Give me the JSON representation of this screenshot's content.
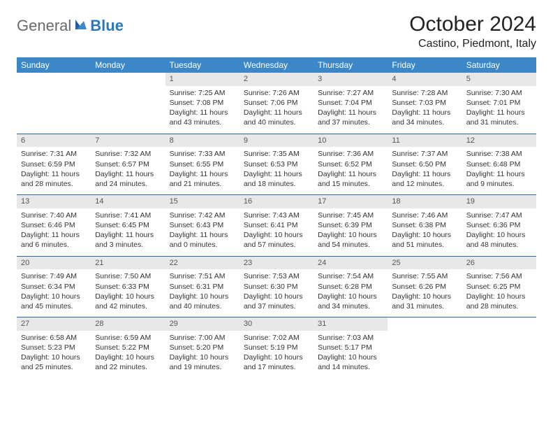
{
  "logo": {
    "text1": "General",
    "text2": "Blue"
  },
  "title": "October 2024",
  "location": "Castino, Piedmont, Italy",
  "colors": {
    "header_bg": "#3b87c8",
    "header_text": "#ffffff",
    "row_border": "#2a6aa5",
    "daynum_bg": "#e8e8e8",
    "daynum_text": "#555555",
    "logo_gray": "#6a6a6a",
    "logo_blue": "#2a78c0"
  },
  "dayHeaders": [
    "Sunday",
    "Monday",
    "Tuesday",
    "Wednesday",
    "Thursday",
    "Friday",
    "Saturday"
  ],
  "weeks": [
    [
      {
        "empty": true
      },
      {
        "empty": true
      },
      {
        "n": "1",
        "sr": "Sunrise: 7:25 AM",
        "ss": "Sunset: 7:08 PM",
        "d1": "Daylight: 11 hours",
        "d2": "and 43 minutes."
      },
      {
        "n": "2",
        "sr": "Sunrise: 7:26 AM",
        "ss": "Sunset: 7:06 PM",
        "d1": "Daylight: 11 hours",
        "d2": "and 40 minutes."
      },
      {
        "n": "3",
        "sr": "Sunrise: 7:27 AM",
        "ss": "Sunset: 7:04 PM",
        "d1": "Daylight: 11 hours",
        "d2": "and 37 minutes."
      },
      {
        "n": "4",
        "sr": "Sunrise: 7:28 AM",
        "ss": "Sunset: 7:03 PM",
        "d1": "Daylight: 11 hours",
        "d2": "and 34 minutes."
      },
      {
        "n": "5",
        "sr": "Sunrise: 7:30 AM",
        "ss": "Sunset: 7:01 PM",
        "d1": "Daylight: 11 hours",
        "d2": "and 31 minutes."
      }
    ],
    [
      {
        "n": "6",
        "sr": "Sunrise: 7:31 AM",
        "ss": "Sunset: 6:59 PM",
        "d1": "Daylight: 11 hours",
        "d2": "and 28 minutes."
      },
      {
        "n": "7",
        "sr": "Sunrise: 7:32 AM",
        "ss": "Sunset: 6:57 PM",
        "d1": "Daylight: 11 hours",
        "d2": "and 24 minutes."
      },
      {
        "n": "8",
        "sr": "Sunrise: 7:33 AM",
        "ss": "Sunset: 6:55 PM",
        "d1": "Daylight: 11 hours",
        "d2": "and 21 minutes."
      },
      {
        "n": "9",
        "sr": "Sunrise: 7:35 AM",
        "ss": "Sunset: 6:53 PM",
        "d1": "Daylight: 11 hours",
        "d2": "and 18 minutes."
      },
      {
        "n": "10",
        "sr": "Sunrise: 7:36 AM",
        "ss": "Sunset: 6:52 PM",
        "d1": "Daylight: 11 hours",
        "d2": "and 15 minutes."
      },
      {
        "n": "11",
        "sr": "Sunrise: 7:37 AM",
        "ss": "Sunset: 6:50 PM",
        "d1": "Daylight: 11 hours",
        "d2": "and 12 minutes."
      },
      {
        "n": "12",
        "sr": "Sunrise: 7:38 AM",
        "ss": "Sunset: 6:48 PM",
        "d1": "Daylight: 11 hours",
        "d2": "and 9 minutes."
      }
    ],
    [
      {
        "n": "13",
        "sr": "Sunrise: 7:40 AM",
        "ss": "Sunset: 6:46 PM",
        "d1": "Daylight: 11 hours",
        "d2": "and 6 minutes."
      },
      {
        "n": "14",
        "sr": "Sunrise: 7:41 AM",
        "ss": "Sunset: 6:45 PM",
        "d1": "Daylight: 11 hours",
        "d2": "and 3 minutes."
      },
      {
        "n": "15",
        "sr": "Sunrise: 7:42 AM",
        "ss": "Sunset: 6:43 PM",
        "d1": "Daylight: 11 hours",
        "d2": "and 0 minutes."
      },
      {
        "n": "16",
        "sr": "Sunrise: 7:43 AM",
        "ss": "Sunset: 6:41 PM",
        "d1": "Daylight: 10 hours",
        "d2": "and 57 minutes."
      },
      {
        "n": "17",
        "sr": "Sunrise: 7:45 AM",
        "ss": "Sunset: 6:39 PM",
        "d1": "Daylight: 10 hours",
        "d2": "and 54 minutes."
      },
      {
        "n": "18",
        "sr": "Sunrise: 7:46 AM",
        "ss": "Sunset: 6:38 PM",
        "d1": "Daylight: 10 hours",
        "d2": "and 51 minutes."
      },
      {
        "n": "19",
        "sr": "Sunrise: 7:47 AM",
        "ss": "Sunset: 6:36 PM",
        "d1": "Daylight: 10 hours",
        "d2": "and 48 minutes."
      }
    ],
    [
      {
        "n": "20",
        "sr": "Sunrise: 7:49 AM",
        "ss": "Sunset: 6:34 PM",
        "d1": "Daylight: 10 hours",
        "d2": "and 45 minutes."
      },
      {
        "n": "21",
        "sr": "Sunrise: 7:50 AM",
        "ss": "Sunset: 6:33 PM",
        "d1": "Daylight: 10 hours",
        "d2": "and 42 minutes."
      },
      {
        "n": "22",
        "sr": "Sunrise: 7:51 AM",
        "ss": "Sunset: 6:31 PM",
        "d1": "Daylight: 10 hours",
        "d2": "and 40 minutes."
      },
      {
        "n": "23",
        "sr": "Sunrise: 7:53 AM",
        "ss": "Sunset: 6:30 PM",
        "d1": "Daylight: 10 hours",
        "d2": "and 37 minutes."
      },
      {
        "n": "24",
        "sr": "Sunrise: 7:54 AM",
        "ss": "Sunset: 6:28 PM",
        "d1": "Daylight: 10 hours",
        "d2": "and 34 minutes."
      },
      {
        "n": "25",
        "sr": "Sunrise: 7:55 AM",
        "ss": "Sunset: 6:26 PM",
        "d1": "Daylight: 10 hours",
        "d2": "and 31 minutes."
      },
      {
        "n": "26",
        "sr": "Sunrise: 7:56 AM",
        "ss": "Sunset: 6:25 PM",
        "d1": "Daylight: 10 hours",
        "d2": "and 28 minutes."
      }
    ],
    [
      {
        "n": "27",
        "sr": "Sunrise: 6:58 AM",
        "ss": "Sunset: 5:23 PM",
        "d1": "Daylight: 10 hours",
        "d2": "and 25 minutes."
      },
      {
        "n": "28",
        "sr": "Sunrise: 6:59 AM",
        "ss": "Sunset: 5:22 PM",
        "d1": "Daylight: 10 hours",
        "d2": "and 22 minutes."
      },
      {
        "n": "29",
        "sr": "Sunrise: 7:00 AM",
        "ss": "Sunset: 5:20 PM",
        "d1": "Daylight: 10 hours",
        "d2": "and 19 minutes."
      },
      {
        "n": "30",
        "sr": "Sunrise: 7:02 AM",
        "ss": "Sunset: 5:19 PM",
        "d1": "Daylight: 10 hours",
        "d2": "and 17 minutes."
      },
      {
        "n": "31",
        "sr": "Sunrise: 7:03 AM",
        "ss": "Sunset: 5:17 PM",
        "d1": "Daylight: 10 hours",
        "d2": "and 14 minutes."
      },
      {
        "empty": true
      },
      {
        "empty": true
      }
    ]
  ]
}
